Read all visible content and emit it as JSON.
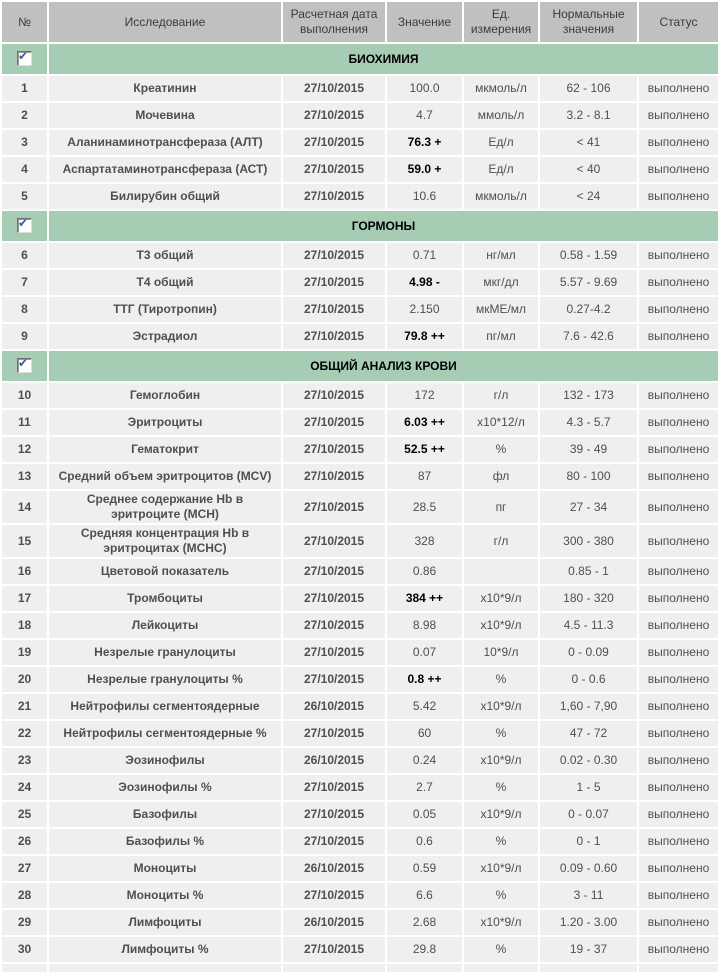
{
  "colors": {
    "header_bg": "#c0c0c0",
    "section_bg": "#a6ccb4",
    "row_bg": "#efefef",
    "check_color": "#3a55a5",
    "text_primary": "#000000",
    "text_secondary": "#4f4f4f"
  },
  "table": {
    "columns": [
      "№",
      "Исследование",
      "Расчетная дата выполнения",
      "Значение",
      "Ед. измерения",
      "Нормальные значения",
      "Статус"
    ],
    "sections": [
      {
        "title": "БИОХИМИЯ",
        "checked": true,
        "rows": [
          {
            "num": "1",
            "name": "Креатинин",
            "date": "27/10/2015",
            "value": "100.0",
            "flagged": false,
            "unit": "мкмоль/л",
            "normal": "62 - 106",
            "status": "выполнено"
          },
          {
            "num": "2",
            "name": "Мочевина",
            "date": "27/10/2015",
            "value": "4.7",
            "flagged": false,
            "unit": "ммоль/л",
            "normal": "3.2 - 8.1",
            "status": "выполнено"
          },
          {
            "num": "3",
            "name": "Аланинаминотрансфераза (АЛТ)",
            "date": "27/10/2015",
            "value": "76.3 +",
            "flagged": true,
            "unit": "Ед/л",
            "normal": "< 41",
            "status": "выполнено"
          },
          {
            "num": "4",
            "name": "Аспартатаминотрансфераза (АСТ)",
            "date": "27/10/2015",
            "value": "59.0 +",
            "flagged": true,
            "unit": "Ед/л",
            "normal": "< 40",
            "status": "выполнено"
          },
          {
            "num": "5",
            "name": "Билирубин общий",
            "date": "27/10/2015",
            "value": "10.6",
            "flagged": false,
            "unit": "мкмоль/л",
            "normal": "< 24",
            "status": "выполнено"
          }
        ]
      },
      {
        "title": "ГОРМОНЫ",
        "checked": true,
        "rows": [
          {
            "num": "6",
            "name": "Т3 общий",
            "date": "27/10/2015",
            "value": "0.71",
            "flagged": false,
            "unit": "нг/мл",
            "normal": "0.58 - 1.59",
            "status": "выполнено"
          },
          {
            "num": "7",
            "name": "Т4 общий",
            "date": "27/10/2015",
            "value": "4.98 -",
            "flagged": true,
            "unit": "мкг/дл",
            "normal": "5.57 - 9.69",
            "status": "выполнено"
          },
          {
            "num": "8",
            "name": "ТТГ (Тиротропин)",
            "date": "27/10/2015",
            "value": "2.150",
            "flagged": false,
            "unit": "мкМЕ/мл",
            "normal": "0.27-4.2",
            "status": "выполнено"
          },
          {
            "num": "9",
            "name": "Эстрадиол",
            "date": "27/10/2015",
            "value": "79.8 ++",
            "flagged": true,
            "unit": "пг/мл",
            "normal": "7.6 - 42.6",
            "status": "выполнено"
          }
        ]
      },
      {
        "title": "ОБЩИЙ АНАЛИЗ КРОВИ",
        "checked": true,
        "rows": [
          {
            "num": "10",
            "name": "Гемоглобин",
            "date": "27/10/2015",
            "value": "172",
            "flagged": false,
            "unit": "г/л",
            "normal": "132 - 173",
            "status": "выполнено"
          },
          {
            "num": "11",
            "name": "Эритроциты",
            "date": "27/10/2015",
            "value": "6.03 ++",
            "flagged": true,
            "unit": "х10*12/л",
            "normal": "4.3 - 5.7",
            "status": "выполнено"
          },
          {
            "num": "12",
            "name": "Гематокрит",
            "date": "27/10/2015",
            "value": "52.5 ++",
            "flagged": true,
            "unit": "%",
            "normal": "39 - 49",
            "status": "выполнено"
          },
          {
            "num": "13",
            "name": "Средний объем эритроцитов (MCV)",
            "date": "27/10/2015",
            "value": "87",
            "flagged": false,
            "unit": "фл",
            "normal": "80 - 100",
            "status": "выполнено"
          },
          {
            "num": "14",
            "name": "Среднее содержание Hb в эритроците (MCH)",
            "date": "27/10/2015",
            "value": "28.5",
            "flagged": false,
            "unit": "пг",
            "normal": "27 - 34",
            "status": "выполнено"
          },
          {
            "num": "15",
            "name": "Средняя концентрация Hb в эритроцитах (MCHC)",
            "date": "27/10/2015",
            "value": "328",
            "flagged": false,
            "unit": "г/л",
            "normal": "300 - 380",
            "status": "выполнено"
          },
          {
            "num": "16",
            "name": "Цветовой показатель",
            "date": "27/10/2015",
            "value": "0.86",
            "flagged": false,
            "unit": "",
            "normal": "0.85 - 1",
            "status": "выполнено"
          },
          {
            "num": "17",
            "name": "Тромбоциты",
            "date": "27/10/2015",
            "value": "384 ++",
            "flagged": true,
            "unit": "х10*9/л",
            "normal": "180 - 320",
            "status": "выполнено"
          },
          {
            "num": "18",
            "name": "Лейкоциты",
            "date": "27/10/2015",
            "value": "8.98",
            "flagged": false,
            "unit": "х10*9/л",
            "normal": "4.5 - 11.3",
            "status": "выполнено"
          },
          {
            "num": "19",
            "name": "Незрелые гранулоциты",
            "date": "27/10/2015",
            "value": "0.07",
            "flagged": false,
            "unit": "10*9/л",
            "normal": "0 - 0.09",
            "status": "выполнено"
          },
          {
            "num": "20",
            "name": "Незрелые гранулоциты %",
            "date": "27/10/2015",
            "value": "0.8 ++",
            "flagged": true,
            "unit": "%",
            "normal": "0 - 0.6",
            "status": "выполнено"
          },
          {
            "num": "21",
            "name": "Нейтрофилы сегментоядерные",
            "date": "26/10/2015",
            "value": "5.42",
            "flagged": false,
            "unit": "х10*9/л",
            "normal": "1,60 - 7,90",
            "status": "выполнено"
          },
          {
            "num": "22",
            "name": "Нейтрофилы сегментоядерные %",
            "date": "27/10/2015",
            "value": "60",
            "flagged": false,
            "unit": "%",
            "normal": "47 - 72",
            "status": "выполнено"
          },
          {
            "num": "23",
            "name": "Эозинофилы",
            "date": "26/10/2015",
            "value": "0.24",
            "flagged": false,
            "unit": "х10*9/л",
            "normal": "0.02 - 0.30",
            "status": "выполнено"
          },
          {
            "num": "24",
            "name": "Эозинофилы %",
            "date": "27/10/2015",
            "value": "2.7",
            "flagged": false,
            "unit": "%",
            "normal": "1 - 5",
            "status": "выполнено"
          },
          {
            "num": "25",
            "name": "Базофилы",
            "date": "27/10/2015",
            "value": "0.05",
            "flagged": false,
            "unit": "х10*9/л",
            "normal": "0 - 0.07",
            "status": "выполнено"
          },
          {
            "num": "26",
            "name": "Базофилы %",
            "date": "27/10/2015",
            "value": "0.6",
            "flagged": false,
            "unit": "%",
            "normal": "0 - 1",
            "status": "выполнено"
          },
          {
            "num": "27",
            "name": "Моноциты",
            "date": "26/10/2015",
            "value": "0.59",
            "flagged": false,
            "unit": "х10*9/л",
            "normal": "0.09 - 0.60",
            "status": "выполнено"
          },
          {
            "num": "28",
            "name": "Моноциты %",
            "date": "27/10/2015",
            "value": "6.6",
            "flagged": false,
            "unit": "%",
            "normal": "3 - 11",
            "status": "выполнено"
          },
          {
            "num": "29",
            "name": "Лимфоциты",
            "date": "26/10/2015",
            "value": "2.68",
            "flagged": false,
            "unit": "х10*9/л",
            "normal": "1.20 - 3.00",
            "status": "выполнено"
          },
          {
            "num": "30",
            "name": "Лимфоциты %",
            "date": "27/10/2015",
            "value": "29.8",
            "flagged": false,
            "unit": "%",
            "normal": "19 - 37",
            "status": "выполнено"
          }
        ]
      }
    ]
  }
}
